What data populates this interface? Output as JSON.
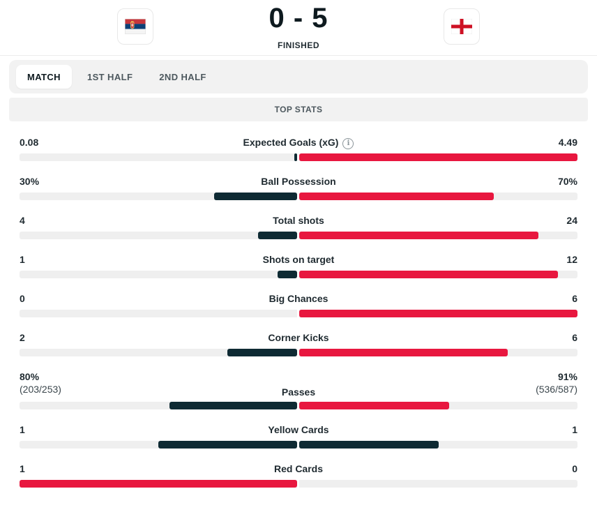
{
  "match": {
    "home_team_flag": "serbia-flag-icon",
    "away_team_flag": "england-flag-icon",
    "score": "0 - 5",
    "status": "FINISHED"
  },
  "tabs": [
    {
      "label": "MATCH",
      "active": true
    },
    {
      "label": "1ST HALF",
      "active": false
    },
    {
      "label": "2ND HALF",
      "active": false
    }
  ],
  "section_title": "TOP STATS",
  "colors": {
    "home": "#0e2a33",
    "away": "#e8173f",
    "track": "#efefef"
  },
  "stats": [
    {
      "label": "Expected Goals (xG)",
      "info_icon": true,
      "home": "0.08",
      "away": "4.49",
      "home_val": 0.08,
      "away_val": 4.49,
      "home_frac": 0.008,
      "away_frac": 1.0,
      "home_color": "#0e2a33",
      "away_color": "#e8173f"
    },
    {
      "label": "Ball Possession",
      "home": "30%",
      "away": "70%",
      "home_val": 30,
      "away_val": 70,
      "home_frac": 0.3,
      "away_frac": 0.7,
      "home_color": "#0e2a33",
      "away_color": "#e8173f"
    },
    {
      "label": "Total shots",
      "home": "4",
      "away": "24",
      "home_val": 4,
      "away_val": 24,
      "home_frac": 0.14,
      "away_frac": 0.86,
      "home_color": "#0e2a33",
      "away_color": "#e8173f"
    },
    {
      "label": "Shots on target",
      "home": "1",
      "away": "12",
      "home_val": 1,
      "away_val": 12,
      "home_frac": 0.07,
      "away_frac": 0.93,
      "home_color": "#0e2a33",
      "away_color": "#e8173f"
    },
    {
      "label": "Big Chances",
      "home": "0",
      "away": "6",
      "home_val": 0,
      "away_val": 6,
      "home_frac": 0.0,
      "away_frac": 1.0,
      "home_color": "#0e2a33",
      "away_color": "#e8173f"
    },
    {
      "label": "Corner Kicks",
      "home": "2",
      "away": "6",
      "home_val": 2,
      "away_val": 6,
      "home_frac": 0.25,
      "away_frac": 0.75,
      "home_color": "#0e2a33",
      "away_color": "#e8173f"
    },
    {
      "label": "Passes",
      "home": "80%",
      "away": "91%",
      "home_sub": "(203/253)",
      "away_sub": "(536/587)",
      "home_val": 80,
      "away_val": 91,
      "home_frac": 0.46,
      "away_frac": 0.54,
      "home_color": "#0e2a33",
      "away_color": "#e8173f"
    },
    {
      "label": "Yellow Cards",
      "home": "1",
      "away": "1",
      "home_val": 1,
      "away_val": 1,
      "home_frac": 0.5,
      "away_frac": 0.5,
      "home_color": "#0e2a33",
      "away_color": "#0e2a33"
    },
    {
      "label": "Red Cards",
      "home": "1",
      "away": "0",
      "home_val": 1,
      "away_val": 0,
      "home_frac": 1.0,
      "away_frac": 0.0,
      "home_color": "#e8173f",
      "away_color": "#e8173f"
    }
  ]
}
